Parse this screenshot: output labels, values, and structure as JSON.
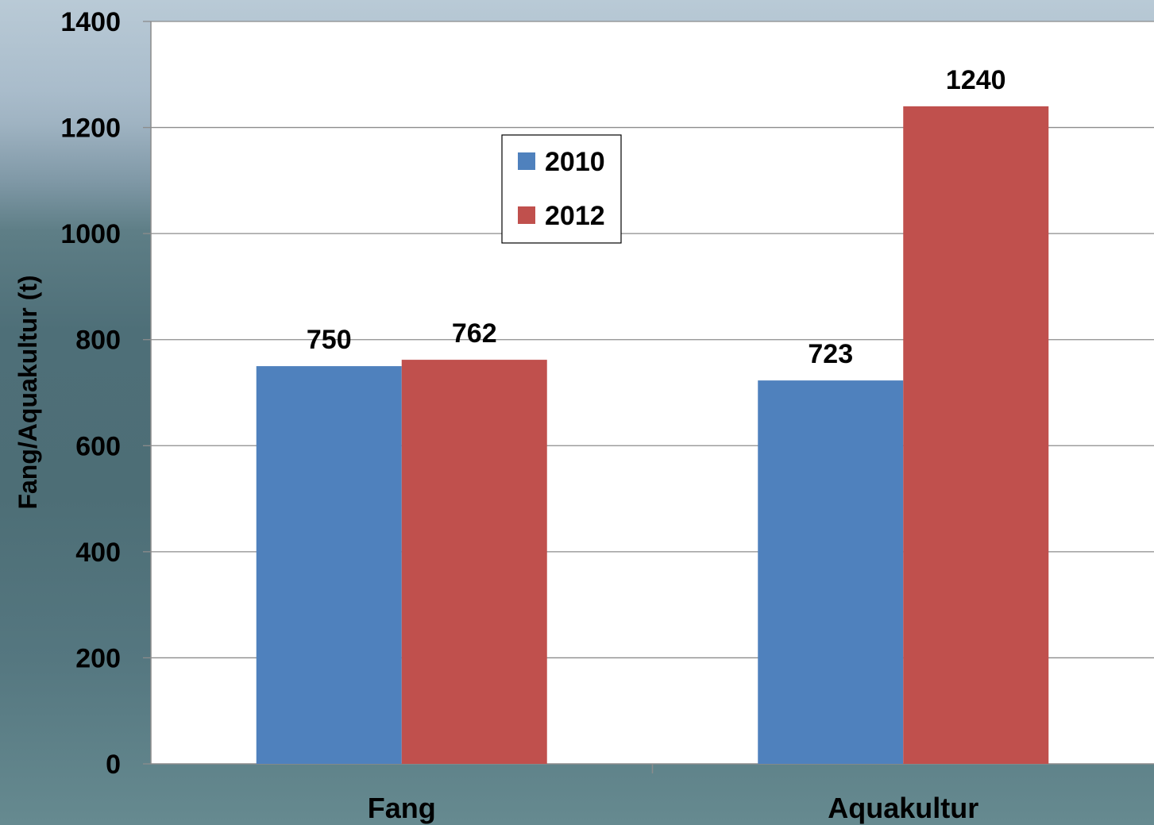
{
  "chart_data": {
    "type": "bar",
    "categories": [
      "Fang",
      "Aquakultur"
    ],
    "series": [
      {
        "name": "2010",
        "values": [
          750,
          723
        ],
        "color": "#4f81bd"
      },
      {
        "name": "2012",
        "values": [
          762,
          1240
        ],
        "color": "#c0504d"
      }
    ],
    "title": "",
    "xlabel": "",
    "ylabel": "Fang/Aquakultur (t)",
    "ylim": [
      0,
      1400
    ],
    "yticks": [
      0,
      200,
      400,
      600,
      800,
      1000,
      1200,
      1400
    ],
    "grid": true,
    "legend_position": "top-center",
    "data_labels": true
  }
}
